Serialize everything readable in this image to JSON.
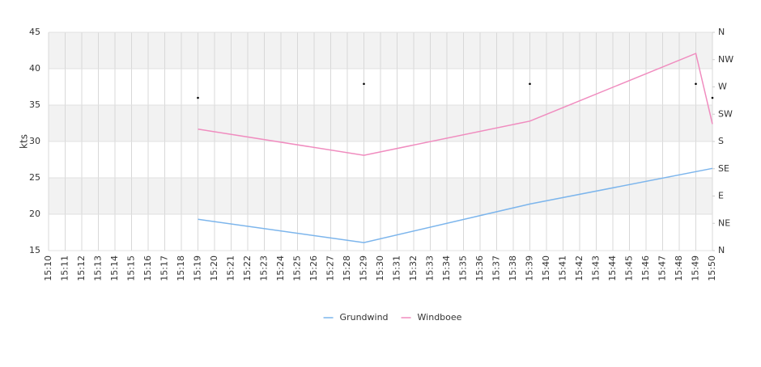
{
  "chart_data": {
    "type": "line",
    "y_label": "kts",
    "categories": [
      "15:10",
      "15:11",
      "15:12",
      "15:13",
      "15:14",
      "15:15",
      "15:16",
      "15:17",
      "15:18",
      "15:19",
      "15:20",
      "15:21",
      "15:22",
      "15:23",
      "15:24",
      "15:25",
      "15:26",
      "15:27",
      "15:28",
      "15:29",
      "15:30",
      "15:31",
      "15:32",
      "15:33",
      "15:34",
      "15:35",
      "15:36",
      "15:37",
      "15:38",
      "15:39",
      "15:40",
      "15:41",
      "15:42",
      "15:43",
      "15:44",
      "15:45",
      "15:46",
      "15:47",
      "15:48",
      "15:49",
      "15:50"
    ],
    "ylim": [
      15,
      45
    ],
    "yticks": [
      15,
      20,
      25,
      30,
      35,
      40,
      45
    ],
    "y2lim": [
      0,
      360
    ],
    "y2ticks": [
      {
        "value": 0,
        "label": "N"
      },
      {
        "value": 45,
        "label": "NE"
      },
      {
        "value": 90,
        "label": "E"
      },
      {
        "value": 135,
        "label": "SE"
      },
      {
        "value": 180,
        "label": "S"
      },
      {
        "value": 225,
        "label": "SW"
      },
      {
        "value": 270,
        "label": "W"
      },
      {
        "value": 315,
        "label": "NW"
      },
      {
        "value": 360,
        "label": "N"
      }
    ],
    "bands": true,
    "grid": true,
    "series": [
      {
        "name": "Grundwind",
        "color": "#7cb5ec",
        "x": [
          "15:19",
          "15:29",
          "15:39",
          "15:50"
        ],
        "values": [
          19.3,
          16.1,
          21.4,
          26.3
        ]
      },
      {
        "name": "Windboee",
        "color": "#f08cbf",
        "x": [
          "15:19",
          "15:29",
          "15:39",
          "15:49",
          "15:50"
        ],
        "values": [
          31.7,
          28.1,
          32.8,
          42.1,
          32.4
        ]
      },
      {
        "axis": "y2",
        "marker": "dot",
        "color": "#000000",
        "x": [
          "15:19",
          "15:29",
          "15:39",
          "15:49",
          "15:50"
        ],
        "values": [
          252,
          275,
          275,
          275,
          252
        ]
      }
    ]
  }
}
